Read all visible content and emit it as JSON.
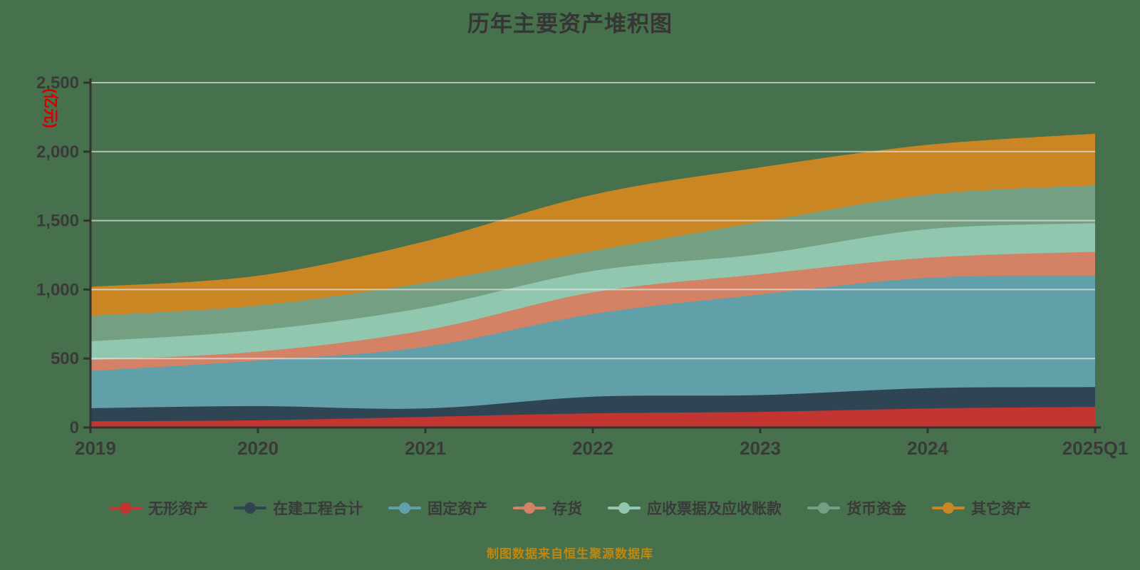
{
  "title": "历年主要资产堆积图",
  "caption": "制图数据来自恒生聚源数据库",
  "chart_data": {
    "type": "area",
    "stacked": true,
    "smooth": true,
    "title": "历年主要资产堆积图",
    "y_axis_unit": "(亿元)",
    "categories": [
      "2019",
      "2020",
      "2021",
      "2022",
      "2023",
      "2024",
      "2025Q1"
    ],
    "series": [
      {
        "name": "无形资产",
        "slug": "intangible-assets",
        "color": "#c23531",
        "values": [
          45,
          52,
          77,
          103,
          113,
          138,
          150
        ]
      },
      {
        "name": "在建工程合计",
        "slug": "construction-in-progress",
        "color": "#2f4554",
        "values": [
          95,
          103,
          61,
          120,
          122,
          147,
          143
        ]
      },
      {
        "name": "固定资产",
        "slug": "fixed-assets",
        "color": "#61a0a8",
        "values": [
          270,
          330,
          447,
          600,
          729,
          800,
          809
        ]
      },
      {
        "name": "存货",
        "slug": "inventory",
        "color": "#d48265",
        "values": [
          80,
          65,
          120,
          157,
          147,
          146,
          172
        ]
      },
      {
        "name": "应收票据及应收账款",
        "slug": "notes-accounts-receivable",
        "color": "#91c7ae",
        "values": [
          135,
          155,
          165,
          155,
          146,
          207,
          207
        ]
      },
      {
        "name": "货币资金",
        "slug": "monetary-funds",
        "color": "#749f83",
        "values": [
          185,
          180,
          180,
          145,
          233,
          250,
          275
        ]
      },
      {
        "name": "其它资产",
        "slug": "other-assets",
        "color": "#ca8622",
        "values": [
          210,
          215,
          300,
          408,
          396,
          361,
          374
        ]
      }
    ],
    "ylim": [
      0,
      2500
    ],
    "y_ticks": [
      {
        "value": 0,
        "label": "0"
      },
      {
        "value": 500,
        "label": "500"
      },
      {
        "value": 1000,
        "label": "1,000"
      },
      {
        "value": 1500,
        "label": "1,500"
      },
      {
        "value": 2000,
        "label": "2,000"
      },
      {
        "value": 2500,
        "label": "2,500"
      }
    ],
    "grid": true,
    "legend_position": "bottom"
  },
  "colors": {
    "background": "#47704d",
    "title_text": "#363636",
    "axis_line": "#333333",
    "axis_text": "#3a3a3a",
    "y_unit_text": "#d40000",
    "gridline": "#e6e6e6",
    "caption_text": "#bd8712"
  }
}
